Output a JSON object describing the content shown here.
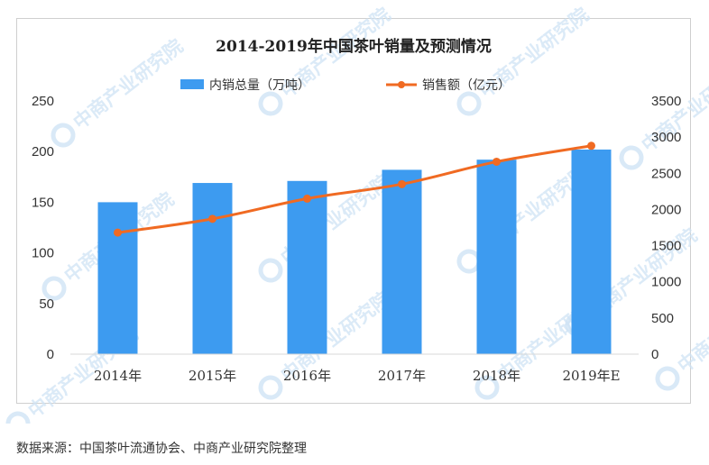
{
  "watermark": "中商产业研究院",
  "colors": {
    "bar": "#3d9bf0",
    "line": "#f06a22",
    "axis_text": "#333333",
    "watermark": "#cfe3f5"
  },
  "chart_data": {
    "type": "bar",
    "title": "2014-2019年中国茶叶销量及预测情况",
    "categories": [
      "2014年",
      "2015年",
      "2016年",
      "2017年",
      "2018年",
      "2019年E"
    ],
    "legend_position": "top",
    "grid": false,
    "series": [
      {
        "name": "内销总量（万吨）",
        "type": "bar",
        "axis": "left",
        "values": [
          150,
          169,
          171,
          182,
          192,
          202
        ]
      },
      {
        "name": "销售额（亿元）",
        "type": "line",
        "axis": "right",
        "values": [
          1680,
          1870,
          2150,
          2350,
          2660,
          2880
        ]
      }
    ],
    "y_left": {
      "lim": [
        0,
        250
      ],
      "ticks": [
        0,
        50,
        100,
        150,
        200,
        250
      ]
    },
    "y_right": {
      "lim": [
        0,
        3500
      ],
      "ticks": [
        0,
        500,
        1000,
        1500,
        2000,
        2500,
        3000,
        3500
      ]
    }
  },
  "footer": {
    "source": "数据来源：中国茶叶流通协会、中商产业研究院整理"
  }
}
